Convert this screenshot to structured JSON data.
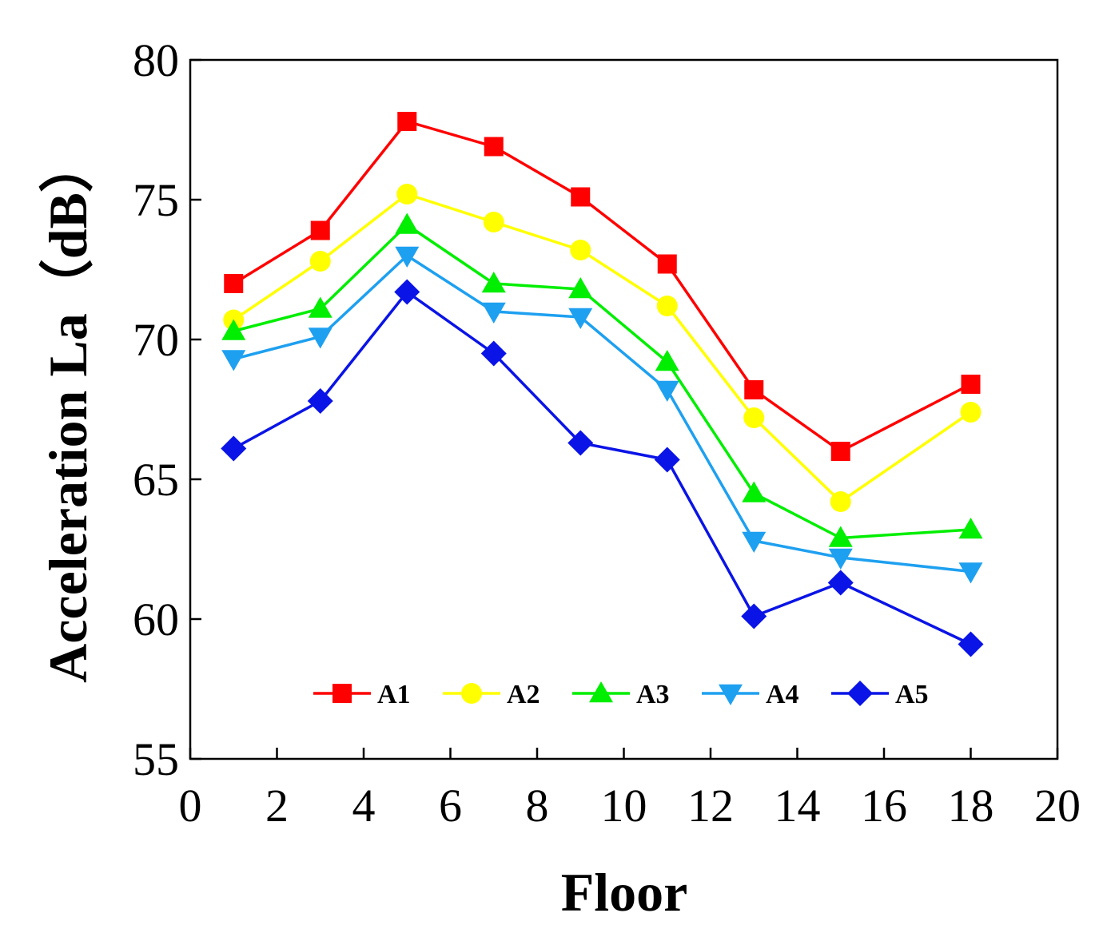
{
  "chart_data": {
    "type": "line",
    "xlabel": "Floor",
    "ylabel": "Acceleration La（dB）",
    "xlim": [
      0,
      20
    ],
    "ylim": [
      55,
      80
    ],
    "xticks": [
      0,
      2,
      4,
      6,
      8,
      10,
      12,
      14,
      16,
      18,
      20
    ],
    "yticks": [
      55,
      60,
      65,
      70,
      75,
      80
    ],
    "grid": false,
    "legend_position": "bottom-center",
    "x": [
      1,
      3,
      5,
      7,
      9,
      11,
      13,
      15,
      18
    ],
    "series": [
      {
        "name": "A1",
        "color": "#ff0000",
        "marker": "square",
        "values": [
          72.0,
          73.9,
          77.8,
          76.9,
          75.1,
          72.7,
          68.2,
          66.0,
          68.4
        ]
      },
      {
        "name": "A2",
        "color": "#ffff00",
        "marker": "circle",
        "values": [
          70.7,
          72.8,
          75.2,
          74.2,
          73.2,
          71.2,
          67.2,
          64.2,
          67.4
        ]
      },
      {
        "name": "A3",
        "color": "#00ee00",
        "marker": "triangle-up",
        "values": [
          70.3,
          71.1,
          74.1,
          72.0,
          71.8,
          69.2,
          64.5,
          62.9,
          63.2
        ]
      },
      {
        "name": "A4",
        "color": "#1ea0f0",
        "marker": "triangle-down",
        "values": [
          69.3,
          70.1,
          73.0,
          71.0,
          70.8,
          68.2,
          62.8,
          62.2,
          61.7
        ]
      },
      {
        "name": "A5",
        "color": "#0a14e6",
        "marker": "diamond",
        "values": [
          66.1,
          67.8,
          71.7,
          69.5,
          66.3,
          65.7,
          60.1,
          61.3,
          59.1
        ]
      }
    ]
  }
}
